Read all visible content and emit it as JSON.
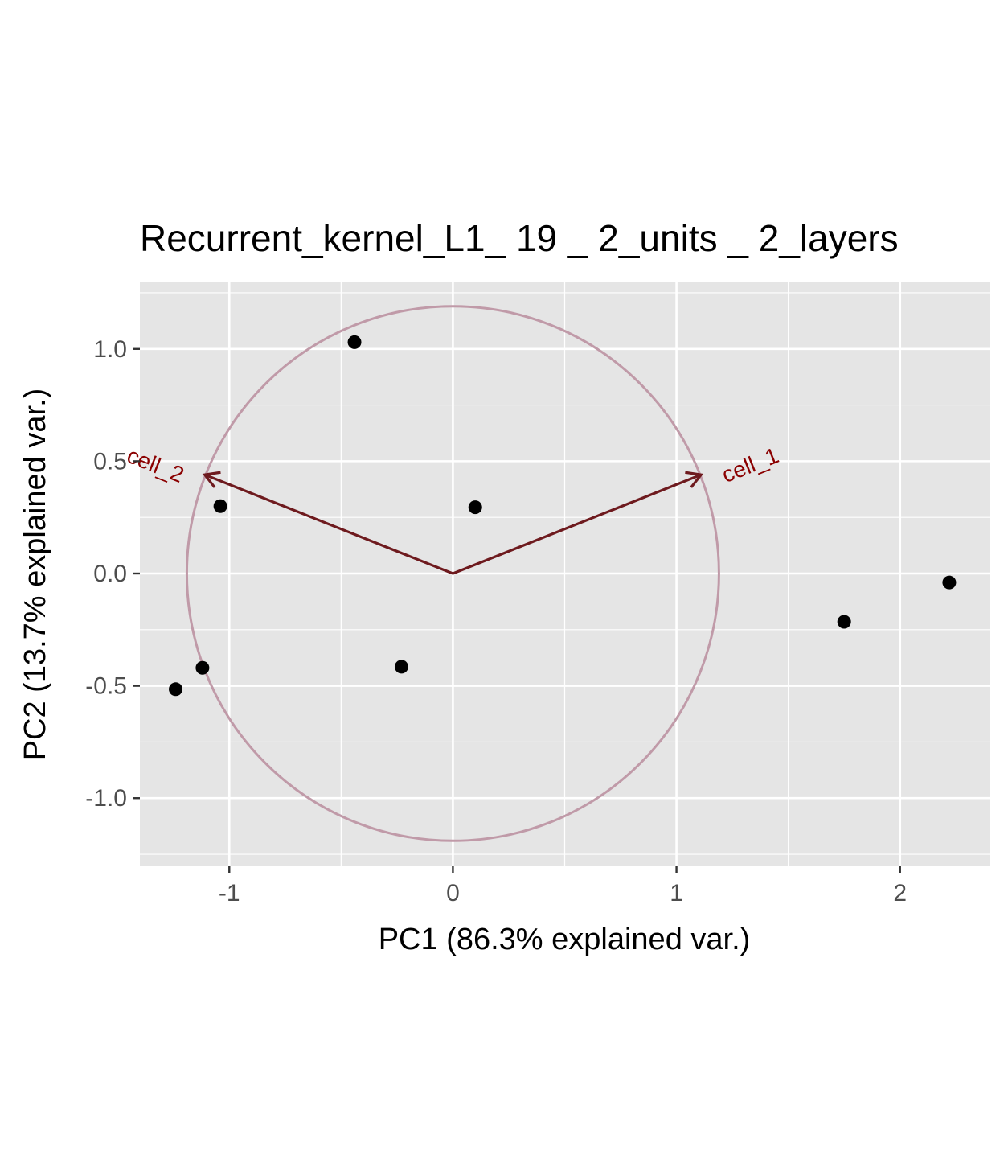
{
  "chart_data": {
    "type": "scatter",
    "title": "Recurrent_kernel_L1_ 19 _ 2_units _ 2_layers",
    "xlabel": "PC1 (86.3% explained var.)",
    "ylabel": "PC2 (13.7% explained var.)",
    "xlim": [
      -1.4,
      2.4
    ],
    "ylim": [
      -1.3,
      1.3
    ],
    "x_ticks": [
      -1,
      0,
      1,
      2
    ],
    "x_tick_labels": [
      "-1",
      "0",
      "1",
      "2"
    ],
    "y_ticks": [
      -1.0,
      -0.5,
      0.0,
      0.5,
      1.0
    ],
    "y_tick_labels": [
      "-1.0",
      "-0.5",
      "0.0",
      "0.5",
      "1.0"
    ],
    "grid": true,
    "points": [
      {
        "x": -0.44,
        "y": 1.03
      },
      {
        "x": -1.04,
        "y": 0.3
      },
      {
        "x": 0.1,
        "y": 0.295
      },
      {
        "x": -1.12,
        "y": -0.42
      },
      {
        "x": -1.24,
        "y": -0.515
      },
      {
        "x": -0.23,
        "y": -0.415
      },
      {
        "x": 1.75,
        "y": -0.215
      },
      {
        "x": 2.22,
        "y": -0.04
      }
    ],
    "arrows": [
      {
        "label": "cell_1",
        "x": 1.11,
        "y": 0.44
      },
      {
        "label": "cell_2",
        "x": -1.11,
        "y": 0.44
      }
    ],
    "circle": {
      "cx": 0,
      "cy": 0,
      "r": 1.19
    },
    "colors": {
      "panel": "#e5e5e5",
      "grid": "#ffffff",
      "point": "#000000",
      "arrow": "#6e1a1e",
      "arrow_label": "#8b0000",
      "circle": "#c09aa8"
    }
  }
}
